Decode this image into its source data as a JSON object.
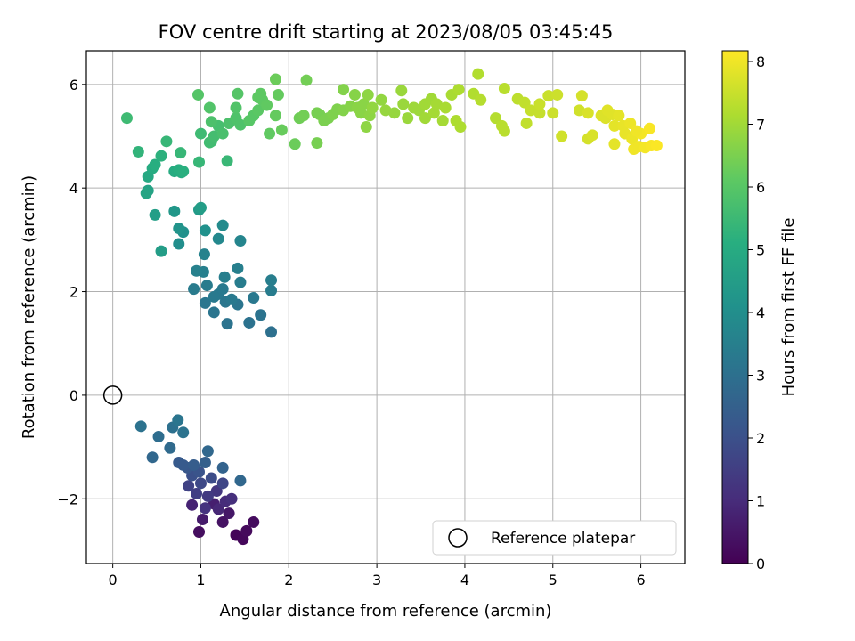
{
  "chart_data": {
    "type": "scatter",
    "title": "FOV centre drift starting at 2023/08/05 03:45:45",
    "xlabel": "Angular distance from reference (arcmin)",
    "ylabel": "Rotation from reference (arcmin)",
    "xlim": [
      -0.3,
      6.5
    ],
    "ylim": [
      -3.25,
      6.65
    ],
    "xticks": [
      0,
      1,
      2,
      3,
      4,
      5,
      6
    ],
    "yticks": [
      -2,
      0,
      2,
      4,
      6
    ],
    "xtick_labels": [
      "0",
      "1",
      "2",
      "3",
      "4",
      "5",
      "6"
    ],
    "ytick_labels": [
      "−2",
      "0",
      "2",
      "4",
      "6"
    ],
    "grid": true,
    "colormap": "viridis",
    "colorbar": {
      "label": "Hours from first FF file",
      "min": 0,
      "max": 8.17,
      "ticks": [
        0,
        1,
        2,
        3,
        4,
        5,
        6,
        7,
        8
      ],
      "tick_labels": [
        "0",
        "1",
        "2",
        "3",
        "4",
        "5",
        "6",
        "7",
        "8"
      ]
    },
    "legend": {
      "label": "Reference platepar",
      "placement": "lower-right"
    },
    "reference_point": {
      "x": 0,
      "y": 0,
      "label": "Reference platepar"
    },
    "series": [
      {
        "points": [
          [
            1.4,
            -2.7,
            0.1
          ],
          [
            1.48,
            -2.78,
            0.15
          ],
          [
            1.52,
            -2.62,
            0.2
          ],
          [
            1.6,
            -2.45,
            0.25
          ],
          [
            0.98,
            -2.64,
            0.3
          ],
          [
            1.25,
            -2.45,
            0.4
          ],
          [
            1.32,
            -2.28,
            0.5
          ],
          [
            1.02,
            -2.4,
            0.6
          ],
          [
            1.15,
            -2.1,
            0.7
          ],
          [
            0.9,
            -2.12,
            0.8
          ],
          [
            1.2,
            -2.2,
            0.9
          ],
          [
            1.28,
            -2.05,
            1.0
          ],
          [
            1.35,
            -2.0,
            1.1
          ],
          [
            1.05,
            -2.18,
            1.2
          ],
          [
            1.18,
            -1.85,
            1.3
          ],
          [
            1.08,
            -1.95,
            1.4
          ],
          [
            0.95,
            -1.9,
            1.5
          ],
          [
            0.86,
            -1.75,
            1.6
          ],
          [
            1.25,
            -1.7,
            1.7
          ],
          [
            1.0,
            -1.7,
            1.8
          ],
          [
            1.12,
            -1.6,
            1.9
          ],
          [
            0.9,
            -1.55,
            2.0
          ],
          [
            0.98,
            -1.48,
            2.1
          ],
          [
            0.85,
            -1.4,
            2.2
          ],
          [
            0.75,
            -1.3,
            2.3
          ],
          [
            0.8,
            -1.35,
            2.3
          ],
          [
            0.92,
            -1.35,
            2.4
          ],
          [
            1.05,
            -1.3,
            2.5
          ],
          [
            1.25,
            -1.4,
            2.6
          ],
          [
            1.45,
            -1.65,
            2.7
          ],
          [
            0.45,
            -1.2,
            2.7
          ],
          [
            0.65,
            -1.02,
            2.8
          ],
          [
            0.52,
            -0.8,
            2.9
          ],
          [
            0.68,
            -0.62,
            3.0
          ],
          [
            0.32,
            -0.6,
            3.05
          ],
          [
            0.8,
            -0.72,
            3.1
          ],
          [
            0.74,
            -0.48,
            3.15
          ],
          [
            1.08,
            -1.08,
            2.75
          ],
          [
            1.8,
            1.22,
            3.0
          ],
          [
            1.55,
            1.4,
            3.05
          ],
          [
            1.68,
            1.55,
            3.1
          ],
          [
            1.3,
            1.38,
            3.1
          ],
          [
            1.15,
            1.6,
            3.15
          ],
          [
            1.42,
            1.75,
            3.15
          ],
          [
            1.05,
            1.78,
            3.2
          ],
          [
            1.28,
            1.8,
            3.2
          ],
          [
            1.6,
            1.88,
            3.25
          ],
          [
            1.2,
            1.95,
            3.25
          ],
          [
            1.35,
            1.85,
            3.3
          ],
          [
            1.15,
            1.9,
            3.3
          ],
          [
            1.25,
            2.05,
            3.3
          ],
          [
            0.92,
            2.05,
            3.35
          ],
          [
            1.07,
            2.12,
            3.35
          ],
          [
            1.8,
            2.02,
            3.4
          ],
          [
            1.45,
            2.18,
            3.4
          ],
          [
            1.27,
            2.28,
            3.45
          ],
          [
            1.8,
            2.22,
            3.45
          ],
          [
            1.42,
            2.45,
            3.5
          ],
          [
            1.03,
            2.38,
            3.5
          ],
          [
            0.95,
            2.4,
            3.55
          ],
          [
            1.04,
            2.72,
            3.6
          ],
          [
            1.45,
            2.98,
            3.7
          ],
          [
            1.2,
            3.02,
            3.8
          ],
          [
            1.25,
            3.28,
            3.9
          ],
          [
            0.75,
            2.92,
            4.0
          ],
          [
            1.05,
            3.18,
            4.1
          ],
          [
            0.8,
            3.15,
            4.1
          ],
          [
            0.75,
            3.22,
            4.2
          ],
          [
            0.7,
            3.55,
            4.3
          ],
          [
            0.98,
            3.58,
            4.4
          ],
          [
            1.0,
            3.62,
            4.5
          ],
          [
            0.48,
            3.48,
            4.55
          ],
          [
            0.55,
            2.78,
            4.5
          ],
          [
            0.4,
            3.95,
            4.7
          ],
          [
            0.38,
            3.9,
            4.75
          ],
          [
            0.4,
            4.22,
            4.9
          ],
          [
            0.45,
            4.38,
            5.0
          ],
          [
            0.48,
            4.45,
            5.1
          ],
          [
            0.55,
            4.62,
            5.2
          ],
          [
            0.7,
            4.32,
            5.0
          ],
          [
            0.78,
            4.3,
            5.05
          ],
          [
            0.75,
            4.35,
            5.1
          ],
          [
            0.8,
            4.32,
            5.15
          ],
          [
            0.98,
            4.5,
            5.4
          ],
          [
            1.3,
            4.52,
            5.45
          ],
          [
            0.29,
            4.7,
            5.3
          ],
          [
            0.61,
            4.9,
            5.4
          ],
          [
            0.77,
            4.68,
            5.4
          ],
          [
            0.16,
            5.35,
            5.55
          ],
          [
            1.0,
            5.05,
            5.55
          ],
          [
            1.12,
            4.9,
            5.6
          ],
          [
            1.1,
            4.88,
            5.6
          ],
          [
            1.15,
            5.0,
            5.65
          ],
          [
            1.2,
            5.2,
            5.7
          ],
          [
            1.25,
            5.05,
            5.75
          ],
          [
            1.32,
            5.25,
            5.8
          ],
          [
            1.12,
            5.28,
            5.8
          ],
          [
            1.4,
            5.35,
            5.85
          ],
          [
            1.45,
            5.22,
            5.85
          ],
          [
            1.1,
            5.55,
            5.9
          ],
          [
            1.4,
            5.55,
            5.9
          ],
          [
            0.97,
            5.8,
            5.95
          ],
          [
            1.42,
            5.82,
            5.95
          ],
          [
            1.55,
            5.3,
            6.0
          ],
          [
            1.6,
            5.4,
            6.0
          ],
          [
            1.65,
            5.5,
            6.05
          ],
          [
            1.65,
            5.75,
            6.1
          ],
          [
            1.7,
            5.7,
            6.1
          ],
          [
            1.75,
            5.6,
            6.15
          ],
          [
            1.68,
            5.82,
            6.1
          ],
          [
            1.78,
            5.05,
            6.15
          ],
          [
            1.88,
            5.8,
            6.2
          ],
          [
            1.85,
            5.4,
            6.2
          ],
          [
            1.92,
            5.12,
            6.25
          ],
          [
            1.85,
            6.1,
            6.3
          ],
          [
            2.07,
            4.85,
            6.3
          ],
          [
            2.12,
            5.35,
            6.35
          ],
          [
            2.2,
            6.08,
            6.4
          ],
          [
            2.17,
            5.4,
            6.4
          ],
          [
            2.32,
            4.87,
            6.45
          ],
          [
            2.32,
            5.45,
            6.45
          ],
          [
            2.35,
            5.42,
            6.45
          ],
          [
            2.4,
            5.3,
            6.5
          ],
          [
            2.45,
            5.35,
            6.5
          ],
          [
            2.5,
            5.42,
            6.55
          ],
          [
            2.55,
            5.52,
            6.55
          ],
          [
            2.62,
            5.5,
            6.6
          ],
          [
            2.62,
            5.9,
            6.6
          ],
          [
            2.7,
            5.58,
            6.65
          ],
          [
            2.75,
            5.8,
            6.65
          ],
          [
            2.78,
            5.55,
            6.7
          ],
          [
            2.82,
            5.45,
            6.7
          ],
          [
            2.85,
            5.62,
            6.7
          ],
          [
            2.9,
            5.8,
            6.75
          ],
          [
            2.92,
            5.4,
            6.75
          ],
          [
            2.88,
            5.18,
            6.75
          ],
          [
            2.95,
            5.55,
            6.8
          ],
          [
            3.05,
            5.7,
            6.8
          ],
          [
            3.1,
            5.5,
            6.85
          ],
          [
            3.2,
            5.45,
            6.85
          ],
          [
            3.3,
            5.62,
            6.9
          ],
          [
            3.28,
            5.88,
            6.9
          ],
          [
            3.35,
            5.35,
            6.9
          ],
          [
            3.42,
            5.55,
            6.95
          ],
          [
            3.48,
            5.5,
            6.95
          ],
          [
            3.55,
            5.35,
            7.0
          ],
          [
            3.55,
            5.62,
            7.0
          ],
          [
            3.62,
            5.72,
            7.0
          ],
          [
            3.65,
            5.45,
            7.05
          ],
          [
            3.68,
            5.62,
            7.05
          ],
          [
            3.75,
            5.3,
            7.05
          ],
          [
            3.78,
            5.55,
            7.1
          ],
          [
            3.85,
            5.8,
            7.1
          ],
          [
            3.9,
            5.3,
            7.15
          ],
          [
            3.93,
            5.9,
            7.15
          ],
          [
            3.95,
            5.18,
            7.15
          ],
          [
            4.1,
            5.82,
            7.2
          ],
          [
            4.15,
            6.2,
            7.2
          ],
          [
            4.18,
            5.7,
            7.25
          ],
          [
            4.35,
            5.35,
            7.25
          ],
          [
            4.42,
            5.2,
            7.3
          ],
          [
            4.45,
            5.92,
            7.3
          ],
          [
            4.45,
            5.1,
            7.3
          ],
          [
            4.6,
            5.72,
            7.35
          ],
          [
            4.68,
            5.65,
            7.4
          ],
          [
            4.7,
            5.25,
            7.4
          ],
          [
            4.75,
            5.5,
            7.45
          ],
          [
            4.85,
            5.45,
            7.45
          ],
          [
            4.85,
            5.62,
            7.5
          ],
          [
            4.95,
            5.78,
            7.5
          ],
          [
            5.0,
            5.45,
            7.55
          ],
          [
            5.05,
            5.8,
            7.55
          ],
          [
            5.1,
            5.0,
            7.6
          ],
          [
            5.3,
            5.5,
            7.6
          ],
          [
            5.33,
            5.78,
            7.65
          ],
          [
            5.4,
            4.95,
            7.65
          ],
          [
            5.4,
            5.45,
            7.7
          ],
          [
            5.45,
            5.02,
            7.7
          ],
          [
            5.55,
            5.4,
            7.75
          ],
          [
            5.6,
            5.35,
            7.75
          ],
          [
            5.62,
            5.5,
            7.8
          ],
          [
            5.68,
            5.42,
            7.8
          ],
          [
            5.7,
            5.2,
            7.85
          ],
          [
            5.75,
            5.4,
            7.85
          ],
          [
            5.8,
            5.2,
            7.9
          ],
          [
            5.82,
            5.05,
            7.9
          ],
          [
            5.88,
            5.25,
            7.95
          ],
          [
            5.9,
            4.95,
            7.95
          ],
          [
            5.92,
            4.75,
            8.0
          ],
          [
            5.98,
            4.8,
            8.0
          ],
          [
            6.0,
            5.05,
            8.05
          ],
          [
            6.05,
            4.78,
            8.05
          ],
          [
            6.1,
            5.15,
            8.1
          ],
          [
            6.12,
            4.82,
            8.1
          ],
          [
            6.18,
            4.82,
            8.15
          ],
          [
            5.95,
            5.1,
            8.0
          ],
          [
            5.7,
            4.85,
            7.85
          ]
        ]
      }
    ]
  }
}
